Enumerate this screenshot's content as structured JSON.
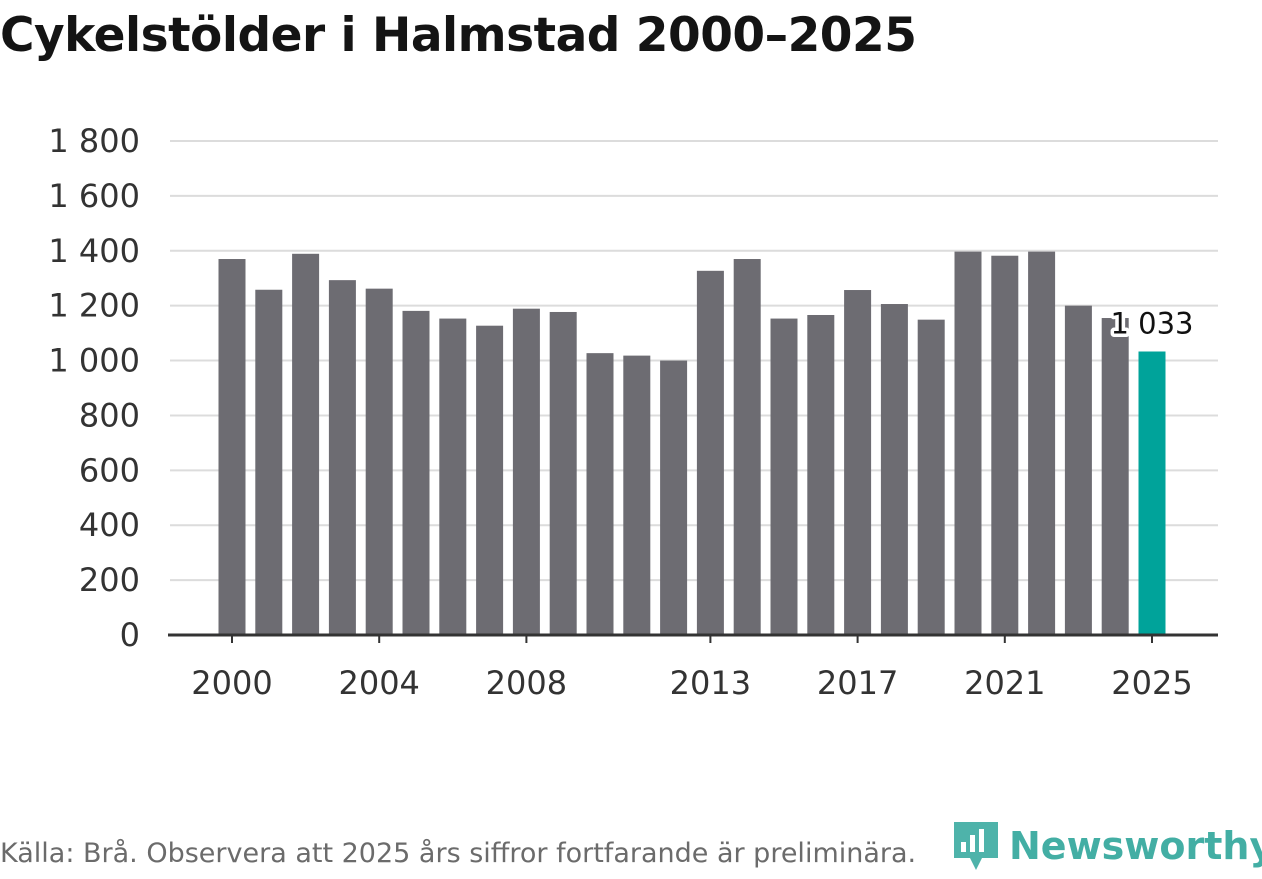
{
  "chart_data": {
    "type": "bar",
    "title": "Cykelstölder i Halmstad 2000–2025",
    "categories": [
      "2000",
      "2001",
      "2002",
      "2003",
      "2004",
      "2005",
      "2006",
      "2007",
      "2008",
      "2009",
      "2010",
      "2011",
      "2012",
      "2013",
      "2014",
      "2015",
      "2016",
      "2017",
      "2018",
      "2019",
      "2020",
      "2021",
      "2022",
      "2023",
      "2024",
      "2025"
    ],
    "values": [
      1370,
      1258,
      1389,
      1293,
      1262,
      1181,
      1153,
      1127,
      1189,
      1177,
      1027,
      1018,
      1000,
      1327,
      1370,
      1153,
      1166,
      1257,
      1206,
      1149,
      1397,
      1382,
      1397,
      1200,
      1155,
      1033
    ],
    "x_tick_labels": [
      "2000",
      "2004",
      "2008",
      "2013",
      "2017",
      "2021",
      "2025"
    ],
    "y_ticks": [
      0,
      200,
      400,
      600,
      800,
      1000,
      1200,
      1400,
      1600,
      1800
    ],
    "y_tick_labels": [
      "0",
      "200",
      "400",
      "600",
      "800",
      "1 000",
      "1 200",
      "1 400",
      "1 600",
      "1 800"
    ],
    "ylim": [
      0,
      1800
    ],
    "xlabel": "",
    "ylabel": "",
    "highlight": {
      "category": "2025",
      "label": "1 033",
      "color": "#00a39a"
    },
    "bar_color": "#6d6c72",
    "grid": true
  },
  "footer": {
    "source": "Källa: Brå. Observera att 2025 års siffror fortfarande är preliminära."
  },
  "brand": {
    "name": "Newsworthy",
    "color": "#2fa69b"
  }
}
